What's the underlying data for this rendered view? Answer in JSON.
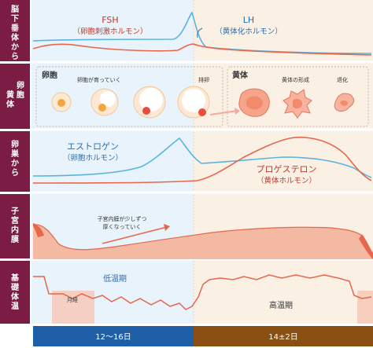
{
  "rows": [
    {
      "id": "brain",
      "label_lines": [
        "脳",
        "下",
        "垂",
        "体",
        "か",
        "ら"
      ]
    },
    {
      "id": "ovary",
      "label_col1": [
        "卵",
        "胞"
      ],
      "label_col2": [
        "黄",
        "体"
      ]
    },
    {
      "id": "ovary-hormones",
      "label_lines": [
        "卵",
        "巣",
        "か",
        "ら"
      ]
    },
    {
      "id": "endometrium",
      "label_lines": [
        "子",
        "宮",
        "内",
        "膜"
      ]
    },
    {
      "id": "temperature",
      "label_lines": [
        "基",
        "礎",
        "体",
        "温"
      ]
    }
  ],
  "hormones": {
    "fsh_name": "FSH",
    "fsh_desc": "（卵胞刺激ホルモン）",
    "lh_name": "LH",
    "lh_desc": "（黄体化ホルモン）",
    "estrogen_name": "エストロゲン",
    "estrogen_desc": "（卵胞ホルモン）",
    "progesterone_name": "プロゲステロン",
    "progesterone_desc": "（黄体ホルモン）"
  },
  "ovary_stages": {
    "follicle_title": "卵胞",
    "growing_label": "卵胞が育っていく",
    "ovulation_label": "排卵",
    "corpus_title": "黄体",
    "forming_label": "黄体の形成",
    "regression_label": "退化"
  },
  "endometrium_note": [
    "子宮内膜が少しずつ",
    "厚くなっていく"
  ],
  "temperature": {
    "low_label": "低温期",
    "high_label": "高温期",
    "menses_label": "月経"
  },
  "timeline": {
    "left_label": "12～16日",
    "right_label": "14±2日"
  },
  "colors": {
    "maroon": "#7a1c44",
    "follicular_bg": "#e8f3fb",
    "luteal_bg": "#fbf0e4",
    "blue_line": "#5ab4e0",
    "red_line": "#e8664d",
    "salmon_fill": "#f4b9a3",
    "left_bar": "#1f5fa8",
    "right_bar": "#8a4f12"
  },
  "icons": [
    "follicle-icon",
    "ovulation-icon",
    "corpus-luteum-icon",
    "arrow-right-icon"
  ]
}
